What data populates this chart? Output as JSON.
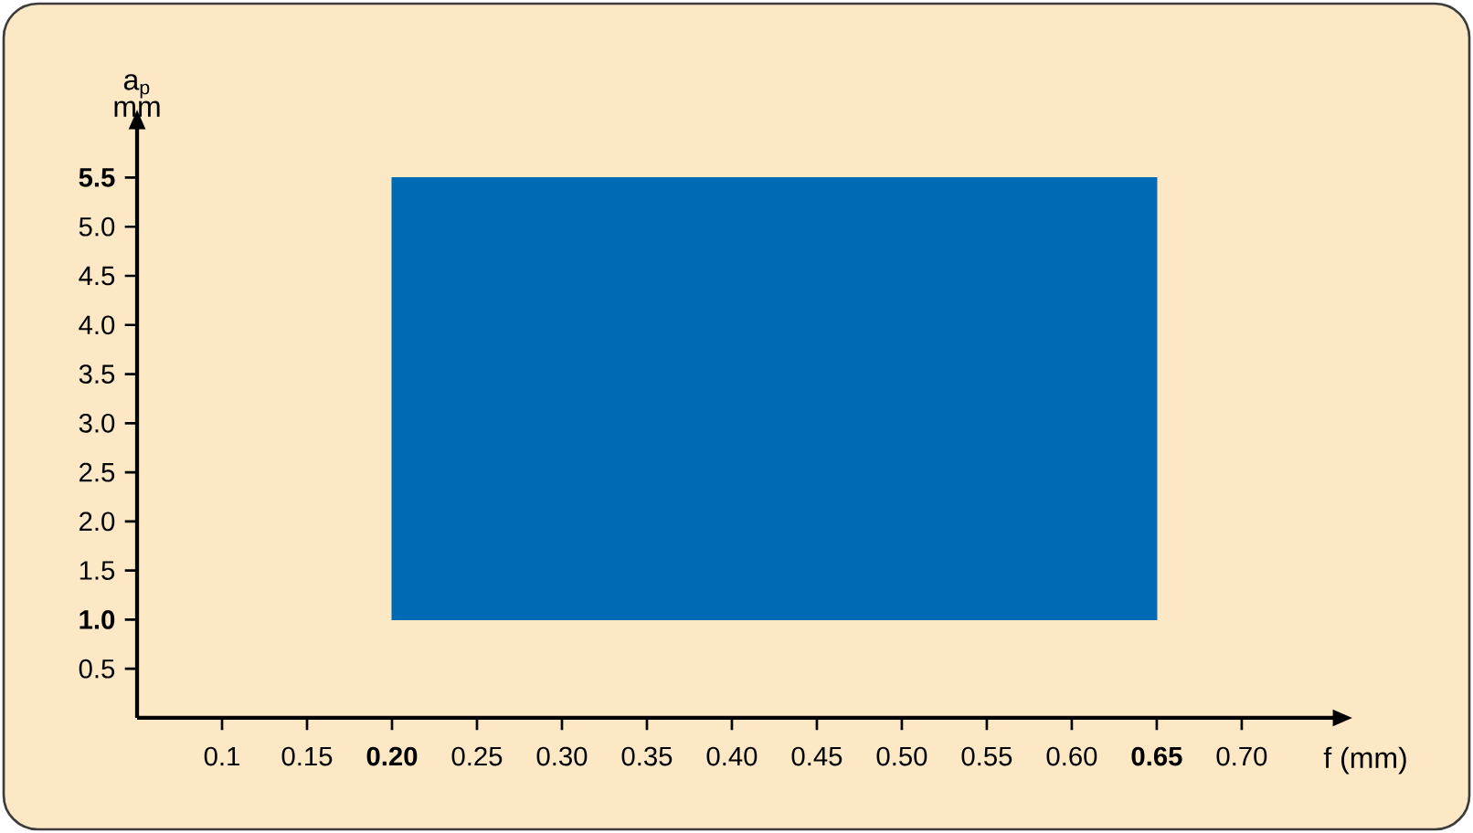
{
  "chart_data": {
    "type": "area",
    "xlabel": "f (mm)",
    "ylabel": "a$_{p}$ mm",
    "series": [
      {
        "color": "#006ab4",
        "x": [
          0.2,
          0.65
        ],
        "values": [
          null,
          null
        ],
        "lower": [
          1.0,
          1.0
        ],
        "upper": [
          5.5,
          5.5
        ]
      }
    ],
    "xlim": [
      0.05,
      0.754
    ],
    "ylim": [
      0,
      6.0
    ],
    "xticks": [
      0.1,
      0.15,
      {
        "value": 0.2,
        "label": "**0.20**"
      },
      {
        "value": 0.25,
        "label": "0.25"
      },
      {
        "value": 0.3,
        "label": "0.30"
      },
      {
        "value": 0.35,
        "label": "0.35"
      },
      {
        "value": 0.4,
        "label": "0.40"
      },
      {
        "value": 0.45,
        "label": "0.45"
      },
      {
        "value": 0.5,
        "label": "0.50"
      },
      {
        "value": 0.55,
        "label": "0.55"
      },
      {
        "value": 0.6,
        "label": "0.60"
      },
      {
        "value": 0.65,
        "label": "**0.65**"
      },
      {
        "value": 0.7,
        "label": "0.70"
      }
    ],
    "yticks": [
      0.5,
      {
        "value": 1.0,
        "label": "**1.0**"
      },
      1.5,
      {
        "value": 2.0,
        "label": "2.0"
      },
      2.5,
      {
        "value": 3.0,
        "label": "3.0"
      },
      3.5,
      {
        "value": 4.0,
        "label": "4.0"
      },
      4.5,
      {
        "value": 5.0,
        "label": "5.0"
      },
      {
        "value": 5.5,
        "label": "**5.5**"
      }
    ]
  }
}
